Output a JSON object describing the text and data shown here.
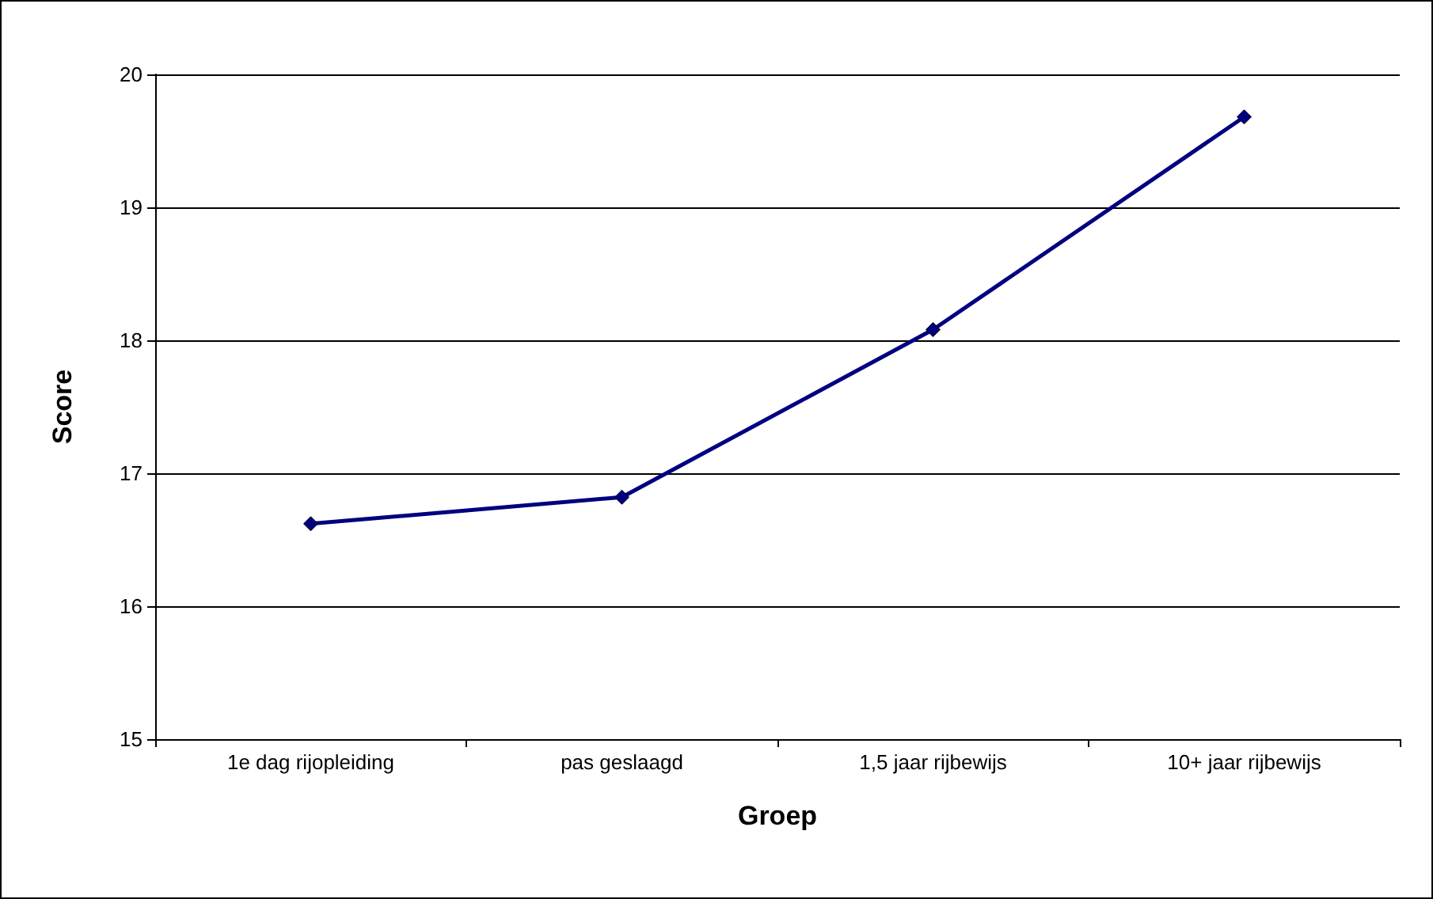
{
  "chart_data": {
    "type": "line",
    "xlabel": "Groep",
    "ylabel": "Score",
    "categories": [
      "1e dag rijopleiding",
      "pas geslaagd",
      "1,5 jaar rijbewijs",
      "10+ jaar rijbewijs"
    ],
    "series": [
      {
        "color": "#000080",
        "values": [
          16.62,
          16.82,
          18.08,
          19.68
        ]
      }
    ],
    "ylim": [
      15,
      20
    ],
    "yticks": [
      15,
      16,
      17,
      18,
      19,
      20
    ],
    "grid": "y",
    "marker": "diamond",
    "line_style": "solid"
  }
}
